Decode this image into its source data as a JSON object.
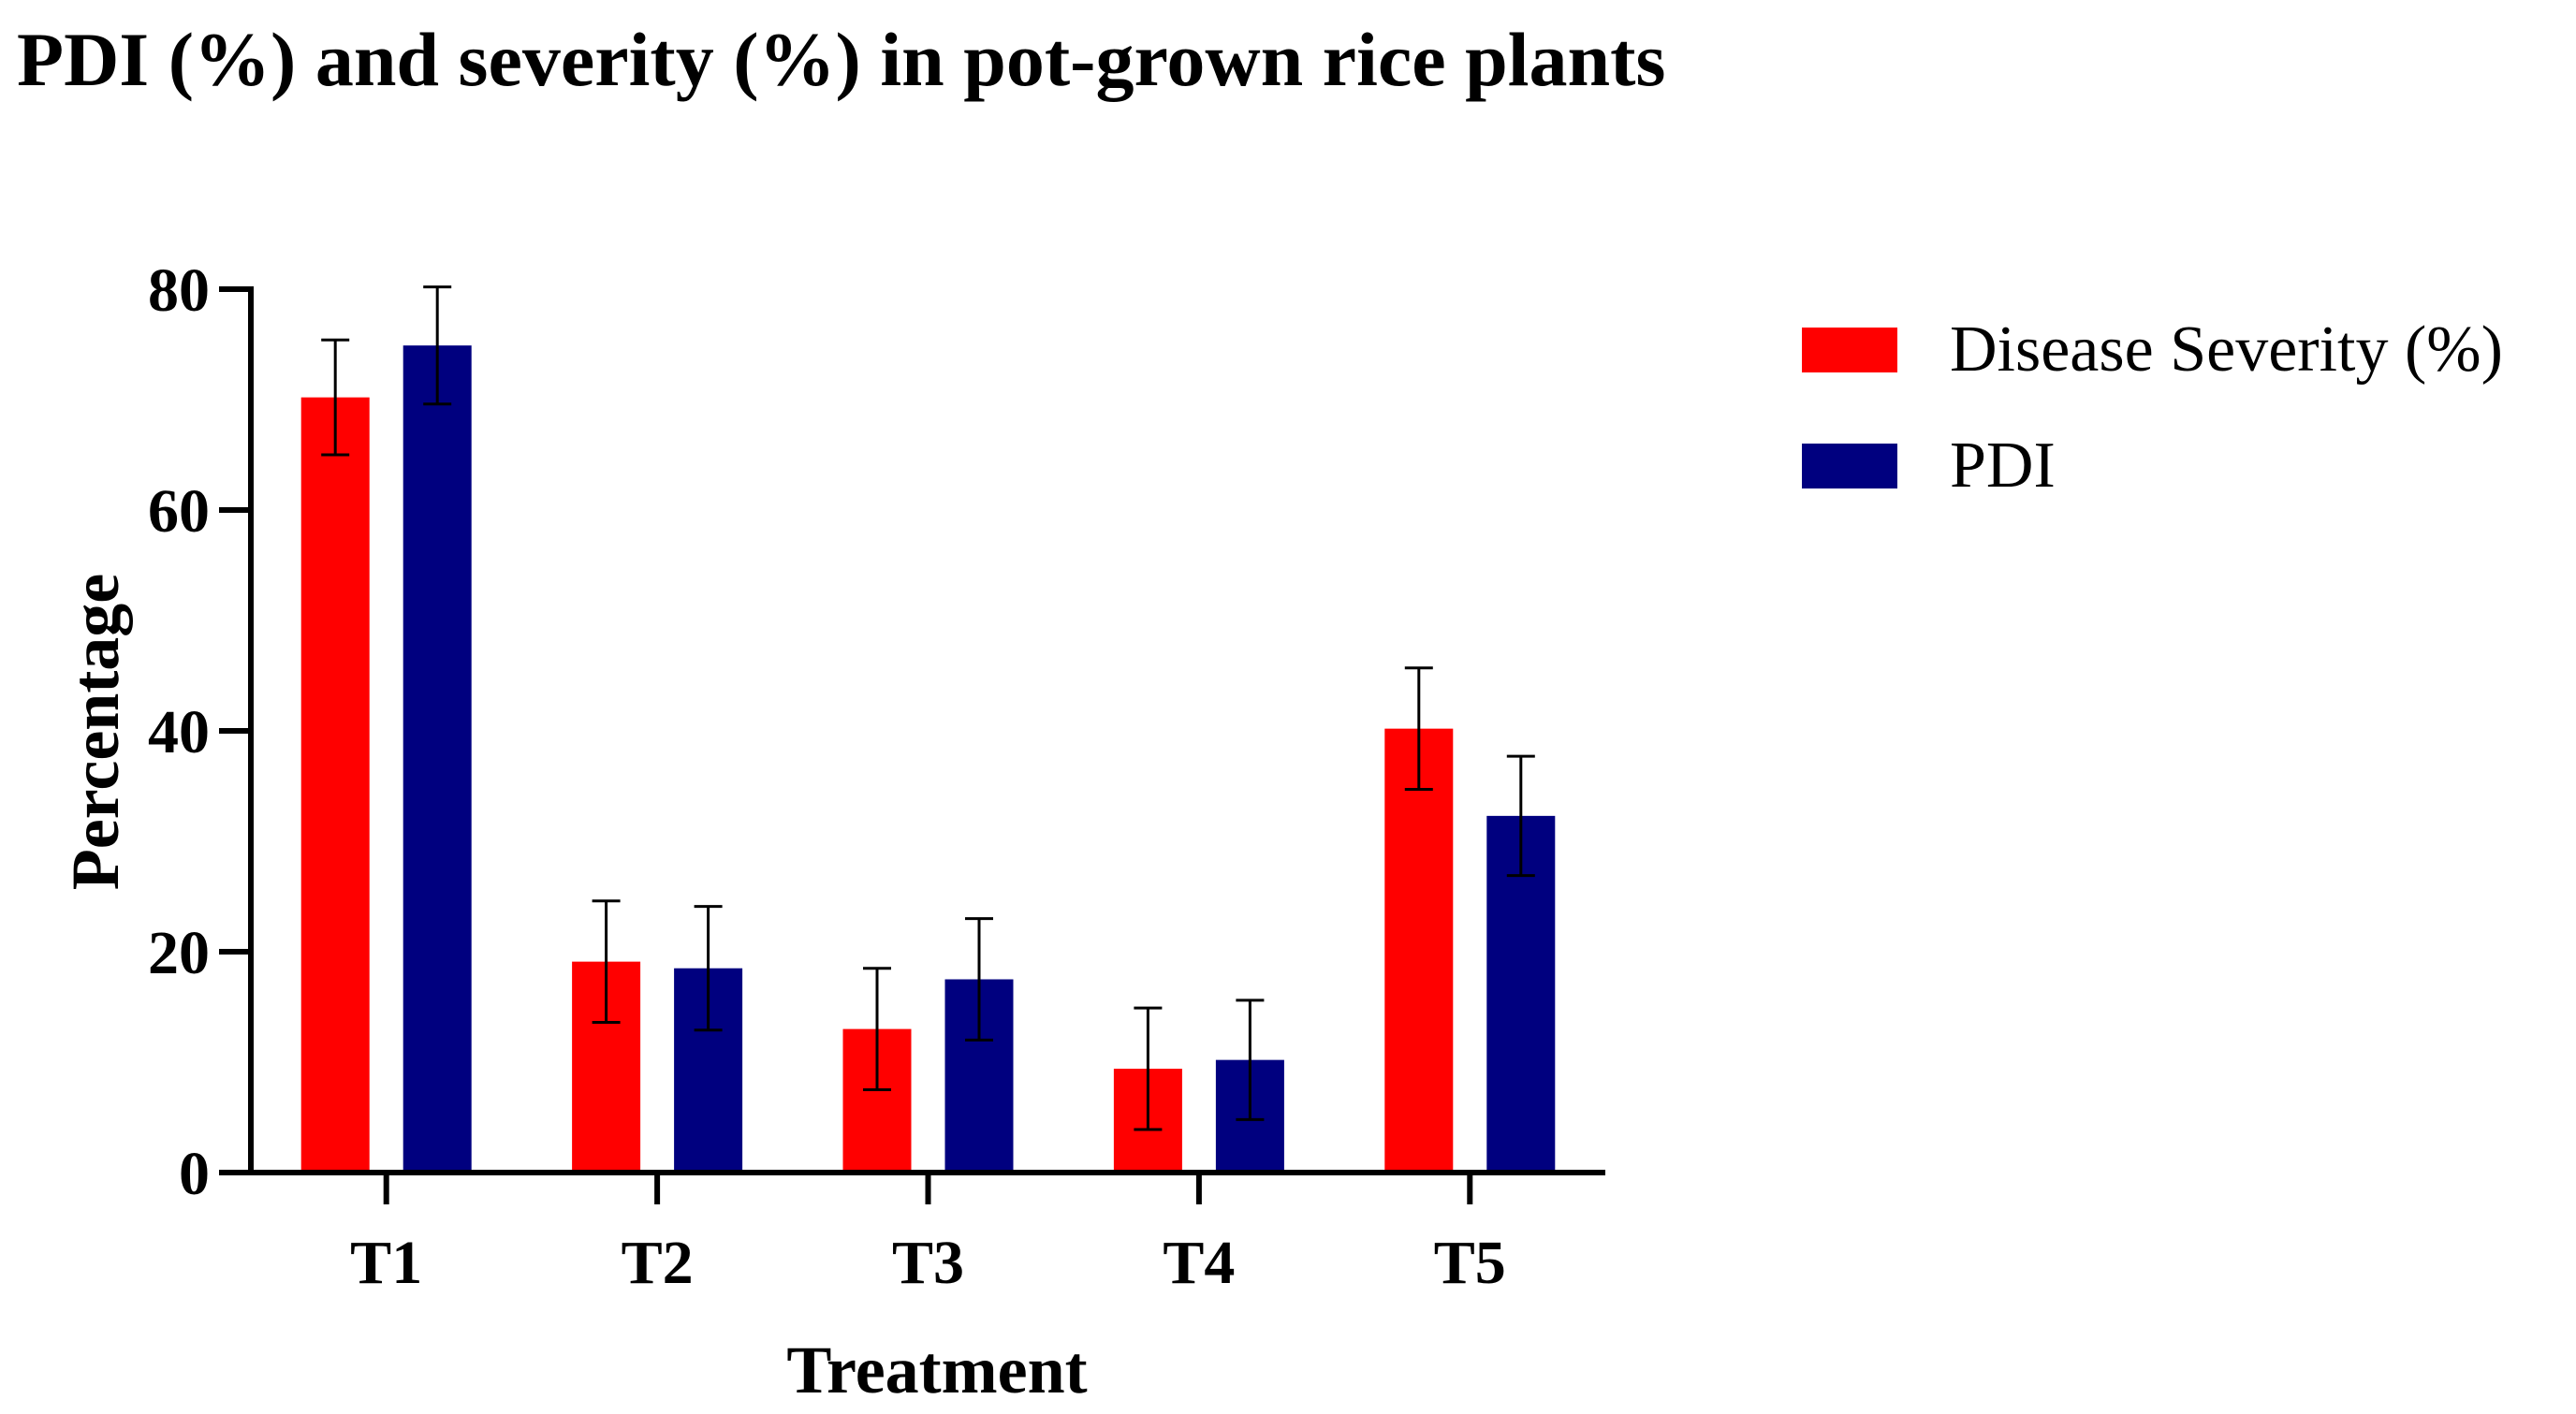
{
  "chart_data": {
    "type": "bar",
    "title": "PDI (%) and severity (%) in pot-grown rice plants",
    "xlabel": "Treatment",
    "ylabel": "Percentage",
    "categories": [
      "T1",
      "T2",
      "T3",
      "T4",
      "T5"
    ],
    "ylim": [
      0,
      80
    ],
    "yticks": [
      0,
      20,
      40,
      60,
      80
    ],
    "grid": false,
    "legend_position": "top-right",
    "series": [
      {
        "name": "Disease Severity (%)",
        "color": "#ff0000",
        "values": [
          70.2,
          19.1,
          13.0,
          9.4,
          40.2
        ],
        "errors": [
          5.2,
          5.5,
          5.5,
          5.5,
          5.5
        ]
      },
      {
        "name": "PDI",
        "color": "#00007f",
        "values": [
          74.9,
          18.5,
          17.5,
          10.2,
          32.3
        ],
        "errors": [
          5.3,
          5.6,
          5.5,
          5.4,
          5.4
        ]
      }
    ]
  }
}
